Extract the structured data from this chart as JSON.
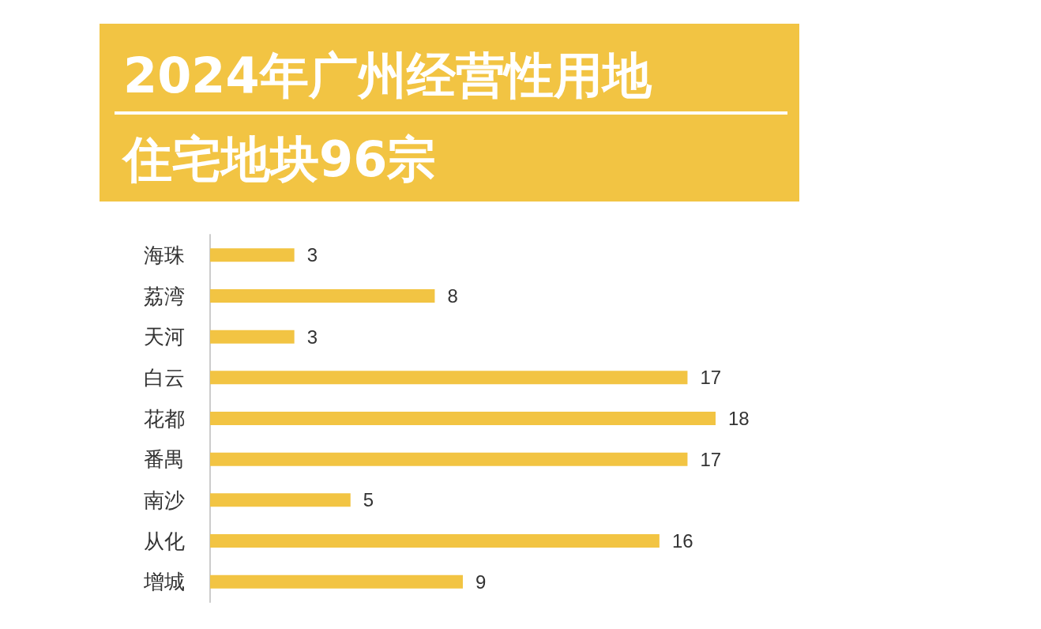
{
  "chart_data": {
    "type": "bar",
    "title": "2024年广州经营性用地",
    "subtitle": "住宅地块96宗",
    "orientation": "horizontal",
    "categories": [
      "海珠",
      "荔湾",
      "天河",
      "白云",
      "花都",
      "番禺",
      "南沙",
      "从化",
      "增城"
    ],
    "values": [
      3,
      8,
      3,
      17,
      18,
      17,
      5,
      16,
      9
    ],
    "color": "#f2c443",
    "data_labels": true
  }
}
